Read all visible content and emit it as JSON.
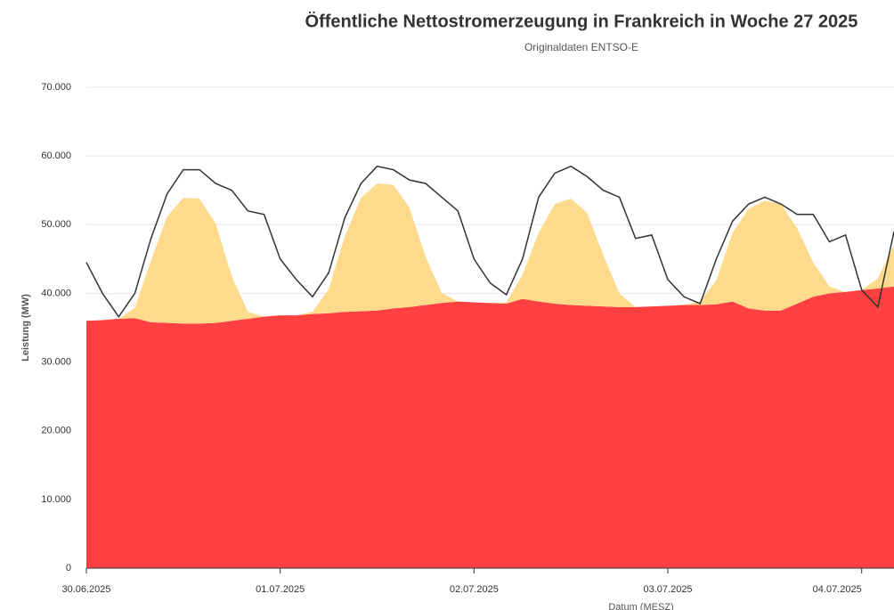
{
  "chart_data": {
    "type": "stacked-area-line",
    "title": "Öffentliche Nettostromerzeugung in Frankreich in Woche 27 2025",
    "subtitle": "Originaldaten ENTSO-E",
    "y_label": "Leistung (MW)",
    "x_label": "Datum (MESZ)",
    "x": [
      0,
      2,
      4,
      6,
      8,
      10,
      12,
      14,
      16,
      18,
      20,
      22,
      24,
      26,
      28,
      30,
      32,
      34,
      36,
      38,
      40,
      42,
      44,
      46,
      48,
      50,
      52,
      54,
      56,
      58,
      60,
      62,
      64,
      66,
      68,
      70,
      72,
      74,
      76,
      78,
      80,
      82,
      84,
      86,
      88,
      90,
      92,
      94,
      96,
      98,
      100
    ],
    "series": [
      {
        "color": "#ff4040",
        "stack": true,
        "values": [
          36000,
          36100,
          36300,
          36400,
          35800,
          35700,
          35600,
          35600,
          35700,
          36000,
          36300,
          36600,
          36800,
          36800,
          37000,
          37100,
          37300,
          37400,
          37500,
          37800,
          38000,
          38300,
          38600,
          38800,
          38700,
          38600,
          38500,
          39200,
          38800,
          38500,
          38300,
          38200,
          38100,
          38000,
          38000,
          38100,
          38200,
          38300,
          38300,
          38400,
          38800,
          37800,
          37500,
          37500,
          38500,
          39500,
          40000,
          40200,
          40500,
          40700,
          41000
        ]
      },
      {
        "color": "#fdda8c",
        "stack": true,
        "values": [
          0,
          0,
          0,
          1500,
          9000,
          15500,
          18300,
          18200,
          14500,
          6500,
          1000,
          0,
          0,
          0,
          300,
          3500,
          11000,
          16500,
          18500,
          18000,
          14500,
          7000,
          1500,
          0,
          0,
          0,
          200,
          3500,
          10000,
          14500,
          15500,
          13500,
          7500,
          2000,
          0,
          0,
          0,
          0,
          500,
          3500,
          10000,
          14500,
          16000,
          15500,
          11000,
          5000,
          1000,
          0,
          0,
          1500,
          6000
        ]
      },
      {
        "color": "#333333",
        "stack": false,
        "values": [
          44500,
          40000,
          36600,
          40000,
          48000,
          54500,
          58000,
          58000,
          56000,
          55000,
          52000,
          51500,
          45000,
          42000,
          39500,
          43000,
          51000,
          56000,
          58500,
          58000,
          56500,
          56000,
          54000,
          52000,
          45000,
          41500,
          39800,
          45000,
          54000,
          57500,
          58500,
          57000,
          55000,
          54000,
          48000,
          48500,
          42000,
          39500,
          38500,
          45000,
          50500,
          53000,
          54000,
          53000,
          51500,
          51500,
          47500,
          48500,
          40500,
          38000,
          49000
        ]
      }
    ],
    "xlim": [
      0,
      100
    ],
    "xticks": [
      {
        "value": 0,
        "label": "30.06.2025"
      },
      {
        "value": 24,
        "label": "01.07.2025"
      },
      {
        "value": 48,
        "label": "02.07.2025"
      },
      {
        "value": 72,
        "label": "03.07.2025"
      },
      {
        "value": 96,
        "label": "04.07.2025"
      }
    ],
    "ylim": [
      0,
      70000
    ],
    "yticks": [
      0,
      {
        "value": 10000,
        "label": "10.000"
      },
      {
        "value": 20000,
        "label": "20.000"
      },
      {
        "value": 30000,
        "label": "30.000"
      },
      {
        "value": 40000,
        "label": "40.000"
      },
      {
        "value": 50000,
        "label": "50.000"
      },
      {
        "value": 60000,
        "label": "60.000"
      },
      {
        "value": 70000,
        "label": "70.000"
      }
    ],
    "grid": true
  }
}
